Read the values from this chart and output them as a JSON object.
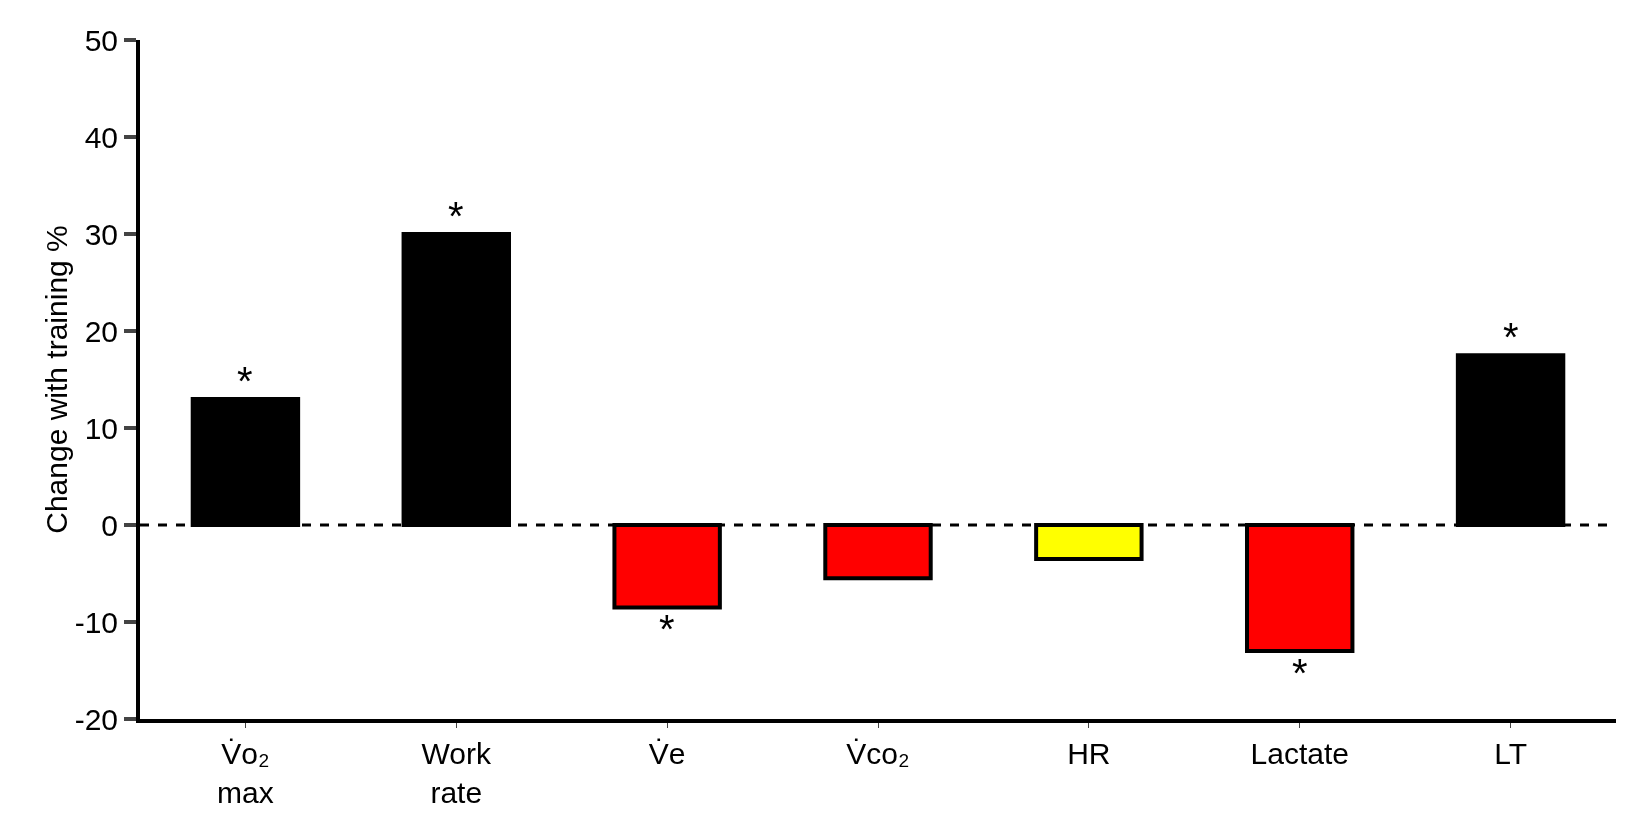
{
  "chart_data": {
    "type": "bar",
    "ylabel": "Change with training %",
    "categories": [
      "V̇o₂ max",
      "Work rate",
      "V̇e",
      "V̇co₂",
      "HR",
      "Lactate",
      "LT"
    ],
    "values": [
      13,
      30,
      -8.5,
      -5.5,
      -3.5,
      -13,
      17.5
    ],
    "colors": [
      "#000000",
      "#000000",
      "#ff0000",
      "#ff0000",
      "#ffff00",
      "#ff0000",
      "#000000"
    ],
    "ylim": [
      -20,
      50
    ],
    "yticks": [
      -20,
      -10,
      0,
      10,
      20,
      30,
      40,
      50
    ],
    "grid": false,
    "ref_lines": [
      {
        "axis": "y",
        "value": 0,
        "line_style": "dashed",
        "color": "#000000"
      }
    ],
    "annotations": [
      {
        "text": "*",
        "x": "V̇o₂ max",
        "y": 13
      },
      {
        "text": "*",
        "x": "Work rate",
        "y": 30
      },
      {
        "text": "*",
        "x": "V̇e",
        "y": -8.5
      },
      {
        "text": "*",
        "x": "Lactate",
        "y": -13
      },
      {
        "text": "*",
        "x": "LT",
        "y": 17.5
      }
    ]
  }
}
